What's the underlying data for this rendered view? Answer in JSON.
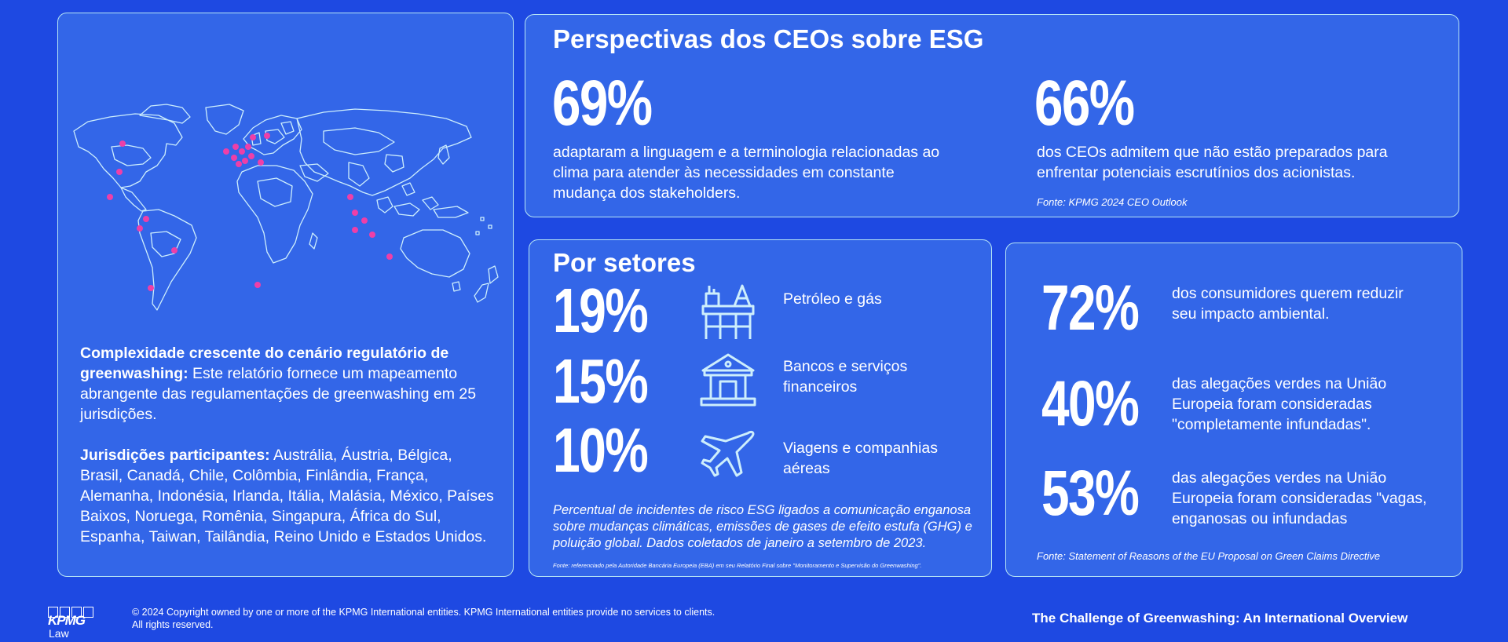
{
  "map_panel": {
    "heading_bold": "Complexidade crescente do cenário regulatório de greenwashing:",
    "heading_text": " Este relatório fornece um mapeamento abrangente das regulamentações de greenwashing em 25 jurisdições.",
    "jurisdictions_bold": "Jurisdições participantes:",
    "jurisdictions_text": " Austrália, Áustria, Bélgica, Brasil, Canadá, Chile, Colômbia, Finlândia, França, Alemanha, Indonésia, Irlanda, Itália, Malásia, México, Países Baixos, Noruega, Romênia, Singapura, África do Sul, Espanha, Taiwan, Tailândia, Reino Unido e Estados Unidos.",
    "marker_color": "#ee3fa8"
  },
  "ceo_panel": {
    "title": "Perspectivas dos CEOs sobre ESG",
    "stat1_value": "69%",
    "stat1_text": "adaptaram a linguagem e a terminologia relacionadas ao clima para atender às necessidades em constante mudança dos stakeholders.",
    "stat2_value": "66%",
    "stat2_text": "dos CEOs admitem que não estão preparados para enfrentar potenciais escrutínios dos acionistas.",
    "source": "Fonte: KPMG 2024 CEO Outlook"
  },
  "sectors_panel": {
    "title": "Por setores",
    "items": [
      {
        "value": "19%",
        "icon": "oil-rig-icon",
        "label": "Petróleo e gás"
      },
      {
        "value": "15%",
        "icon": "bank-icon",
        "label": "Bancos e serviços financeiros"
      },
      {
        "value": "10%",
        "icon": "airplane-icon",
        "label": "Viagens e companhias aéreas"
      }
    ],
    "note": "Percentual de incidentes de risco ESG ligados a comunicação enganosa sobre mudanças climáticas, emissões de gases de efeito estufa (GHG) e poluição global. Dados coletados de janeiro a setembro de 2023.",
    "source": "Fonte: referenciado pela Autoridade Bancária Europeia (EBA) em seu Relatório Final sobre \"Monitoramento e Supervisão do Greenwashing\"."
  },
  "consumers_panel": {
    "items": [
      {
        "value": "72%",
        "text": "dos consumidores querem reduzir seu impacto ambiental."
      },
      {
        "value": "40%",
        "text": "das alegações verdes na União Europeia foram consideradas \"completamente infundadas\"."
      },
      {
        "value": "53%",
        "text": "das alegações verdes na União Europeia foram consideradas \"vagas, enganosas ou infundadas"
      }
    ],
    "source": "Fonte: Statement of Reasons of the EU Proposal on Green Claims Directive"
  },
  "footer": {
    "logo_text": "KPMG",
    "logo_subtext": "Law",
    "copyright_line1": "© 2024 Copyright owned by one or more of the KPMG International entities. KPMG International entities provide no services to clients.",
    "copyright_line2": "All rights reserved.",
    "report_title": "The Challenge of Greenwashing: An International Overview"
  }
}
